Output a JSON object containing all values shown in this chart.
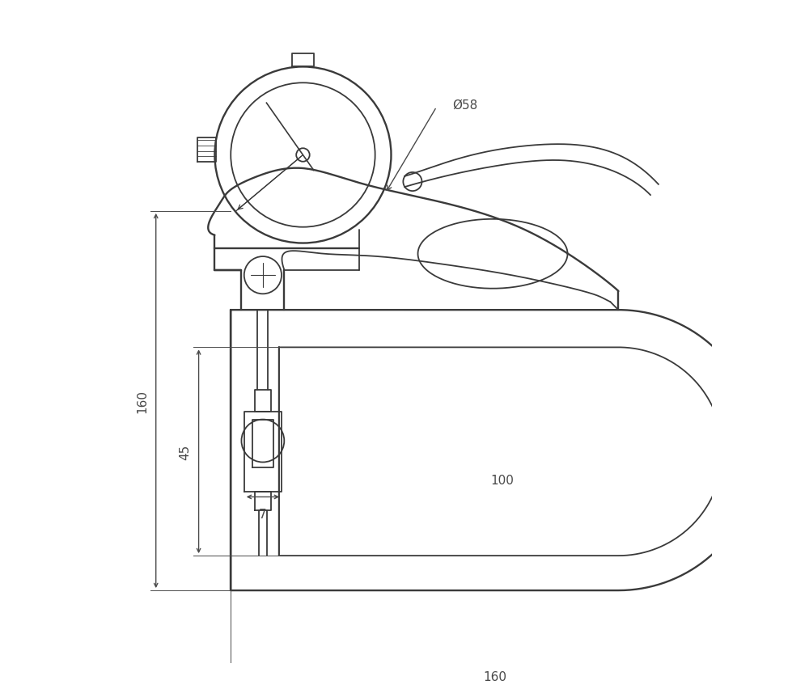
{
  "bg_color": "#ffffff",
  "line_color": "#3a3a3a",
  "dim_color": "#4a4a4a",
  "lw": 1.3,
  "lw_bold": 1.7,
  "lw_dim": 1.0,
  "fig_width": 10.0,
  "fig_height": 8.53,
  "dim_160h": "160",
  "dim_45": "45",
  "dim_7": "7",
  "dim_100": "100",
  "dim_160w": "160",
  "dim_58": "Ø58",
  "fontsize": 11
}
